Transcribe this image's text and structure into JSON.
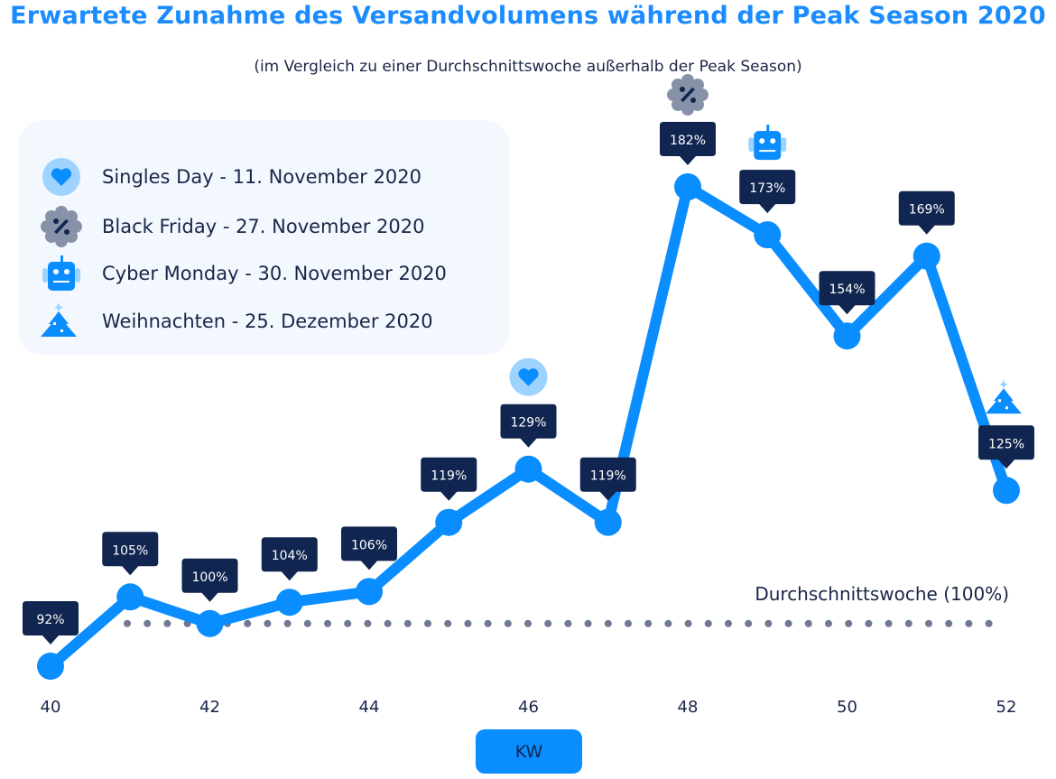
{
  "chart_data": {
    "type": "line",
    "title": "Erwartete Zunahme des Versandvolumens während der Peak Season 2020",
    "subtitle": "(im Vergleich zu einer Durchschnittswoche außerhalb der Peak Season)",
    "xlabel": "KW",
    "ylabel": "",
    "x": [
      40,
      41,
      42,
      43,
      44,
      45,
      46,
      47,
      48,
      49,
      50,
      51,
      52
    ],
    "values": [
      92,
      105,
      100,
      104,
      106,
      119,
      129,
      119,
      182,
      173,
      154,
      169,
      125
    ],
    "data_labels": [
      "92%",
      "105%",
      "100%",
      "104%",
      "106%",
      "119%",
      "129%",
      "119%",
      "182%",
      "173%",
      "154%",
      "169%",
      "125%"
    ],
    "x_ticks": [
      "40",
      "42",
      "44",
      "46",
      "48",
      "50",
      "52"
    ],
    "x_tick_values": [
      40,
      42,
      44,
      46,
      48,
      50,
      52
    ],
    "reference_line": {
      "value": 100,
      "label": "Durchschnittswoche (100%)"
    },
    "event_markers": [
      {
        "week": 46,
        "icon": "heart-icon"
      },
      {
        "week": 48,
        "icon": "percent-badge-icon"
      },
      {
        "week": 49,
        "icon": "robot-icon"
      },
      {
        "week": 52,
        "icon": "christmas-tree-icon"
      }
    ],
    "legend": [
      {
        "icon": "heart-icon",
        "label": "Singles Day - 11. November 2020"
      },
      {
        "icon": "percent-badge-icon",
        "label": "Black Friday - 27. November 2020"
      },
      {
        "icon": "robot-icon",
        "label": "Cyber Monday - 30. November 2020"
      },
      {
        "icon": "christmas-tree-icon",
        "label": "Weihnachten - 25. Dezember 2020"
      }
    ],
    "legend_position": "top-left",
    "grid": false
  },
  "colors": {
    "line": "#0a8dff",
    "label_bg": "#10254f",
    "title": "#1a8cff",
    "reference": "#6f7a92"
  }
}
